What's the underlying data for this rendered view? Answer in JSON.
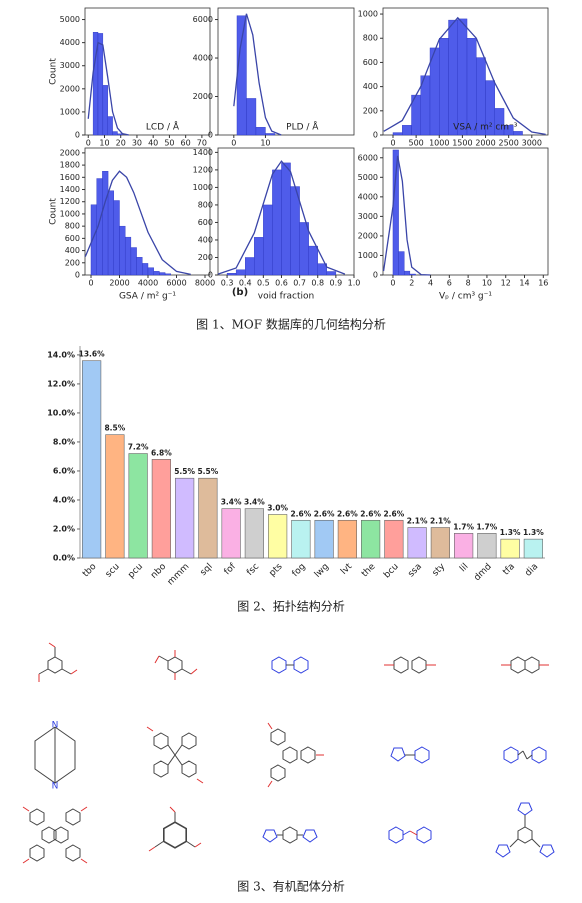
{
  "chart_data": [
    {
      "type": "histogram",
      "xlabel": "LCD / Å",
      "ylabel": "Count",
      "color": "#4f5cea",
      "bins": [
        3,
        6,
        9,
        12,
        15,
        18,
        21
      ],
      "values": [
        4450,
        4400,
        2150,
        800,
        150,
        50
      ],
      "fit": {
        "x": [
          0,
          3,
          6,
          9,
          12,
          15,
          18,
          21,
          25
        ],
        "values": [
          700,
          2700,
          4000,
          3900,
          2500,
          1000,
          300,
          60,
          0
        ],
        "color": "#3a45a8"
      },
      "xlim": [
        -2,
        75
      ],
      "xticks": [
        0,
        10,
        20,
        30,
        40,
        50,
        60,
        70
      ],
      "ylim": [
        0,
        5500
      ],
      "yticks": [
        0,
        1000,
        2000,
        3000,
        4000,
        5000
      ]
    },
    {
      "type": "histogram",
      "xlabel": "PLD / Å",
      "color": "#4f5cea",
      "bins": [
        1,
        4,
        7,
        10,
        13
      ],
      "values": [
        6200,
        1900,
        400,
        80
      ],
      "fit": {
        "x": [
          0,
          2,
          4,
          6,
          8,
          10,
          12,
          15
        ],
        "values": [
          1500,
          4500,
          6300,
          5200,
          2700,
          900,
          200,
          0
        ],
        "color": "#3a45a8"
      },
      "xlim": [
        -5,
        38
      ],
      "xticks": [
        0,
        10
      ],
      "ylim": [
        0,
        6600
      ],
      "yticks": [
        0,
        2000,
        4000,
        6000
      ]
    },
    {
      "type": "histogram",
      "xlabel": "VSA / m² cm⁻³",
      "color": "#4f5cea",
      "bins": [
        0,
        200,
        400,
        600,
        800,
        1000,
        1200,
        1400,
        1600,
        1800,
        2000,
        2200,
        2400,
        2600,
        2800
      ],
      "values": [
        20,
        80,
        330,
        490,
        720,
        800,
        950,
        960,
        800,
        640,
        450,
        220,
        80,
        30
      ],
      "fit": {
        "x": [
          -200,
          200,
          600,
          1000,
          1400,
          1800,
          2200,
          2600,
          3000,
          3300
        ],
        "values": [
          30,
          120,
          400,
          790,
          970,
          800,
          430,
          140,
          25,
          5
        ],
        "color": "#3a45a8"
      },
      "xlim": [
        -216,
        3350
      ],
      "xticks": [
        0,
        500,
        1000,
        1500,
        2000,
        2500,
        3000
      ],
      "ylim": [
        0,
        1050
      ],
      "yticks": [
        0,
        200,
        400,
        600,
        800,
        1000
      ]
    },
    {
      "type": "histogram",
      "xlabel": "GSA / m² g⁻¹",
      "ylabel": "Count",
      "color": "#4f5cea",
      "bins": [
        0,
        400,
        800,
        1200,
        1600,
        2000,
        2400,
        2800,
        3200,
        3600,
        4000,
        4400,
        4800,
        5200,
        5600
      ],
      "values": [
        1150,
        1580,
        1700,
        1380,
        1220,
        800,
        620,
        450,
        290,
        190,
        120,
        60,
        40,
        20
      ],
      "fit": {
        "x": [
          -400,
          500,
          1000,
          1500,
          2000,
          2500,
          3000,
          4000,
          5000,
          6000,
          7000
        ],
        "values": [
          300,
          800,
          1200,
          1550,
          1700,
          1600,
          1350,
          700,
          250,
          60,
          10
        ],
        "color": "#3a45a8"
      },
      "xlim": [
        -420,
        8350
      ],
      "xticks": [
        0,
        2000,
        4000,
        6000,
        8000
      ],
      "ylim": [
        0,
        2080
      ],
      "yticks": [
        0,
        200,
        400,
        600,
        800,
        1000,
        1200,
        1400,
        1600,
        1800,
        2000
      ]
    },
    {
      "type": "histogram",
      "xlabel": "void fraction",
      "color": "#4f5cea",
      "bins": [
        0.3,
        0.35,
        0.4,
        0.45,
        0.5,
        0.55,
        0.6,
        0.65,
        0.7,
        0.75,
        0.8,
        0.85,
        0.9
      ],
      "values": [
        20,
        60,
        200,
        430,
        800,
        1200,
        1280,
        1010,
        600,
        330,
        130,
        40
      ],
      "fit": {
        "x": [
          0.25,
          0.35,
          0.45,
          0.55,
          0.6,
          0.65,
          0.75,
          0.85,
          0.95
        ],
        "values": [
          10,
          80,
          480,
          1150,
          1300,
          1180,
          500,
          90,
          10
        ],
        "color": "#3a45a8"
      },
      "xlim": [
        0.25,
        1.0
      ],
      "xticks": [
        0.3,
        0.4,
        0.5,
        0.6,
        0.7,
        0.8,
        0.9,
        {
          "value": 1,
          "label": "1.0"
        }
      ],
      "ylim": [
        0,
        1450
      ],
      "yticks": [
        0,
        200,
        400,
        600,
        800,
        1000,
        1200,
        1400
      ]
    },
    {
      "type": "histogram",
      "xlabel": "Vₚ / cm³ g⁻¹",
      "color": "#4f5cea",
      "bins": [
        0,
        0.6,
        1.2,
        1.8,
        2.4
      ],
      "values": [
        6400,
        1200,
        200,
        50
      ],
      "fit": {
        "x": [
          -1,
          0,
          0.5,
          1,
          1.5,
          2,
          3,
          4
        ],
        "values": [
          200,
          3500,
          6100,
          4800,
          1800,
          400,
          20,
          0
        ],
        "color": "#3a45a8"
      },
      "xlim": [
        -1.06,
        16.5
      ],
      "xticks": [
        0,
        2,
        4,
        6,
        8,
        10,
        12,
        14,
        16
      ],
      "ylim": [
        0,
        6500
      ],
      "yticks": [
        0,
        1000,
        2000,
        3000,
        4000,
        5000,
        6000
      ]
    },
    {
      "type": "bar",
      "categories": [
        "tbo",
        "scu",
        "pcu",
        "nbo",
        "mmm",
        "sql",
        "fof",
        "fsc",
        "pts",
        "fog",
        "lwg",
        "lvt",
        "the",
        "bcu",
        "ssa",
        "sty",
        "lil",
        "dmd",
        "tfa",
        "dia"
      ],
      "values": [
        13.6,
        8.5,
        7.2,
        6.8,
        5.5,
        5.5,
        3.4,
        3.4,
        3.0,
        2.6,
        2.6,
        2.6,
        2.6,
        2.6,
        2.1,
        2.1,
        1.7,
        1.7,
        1.3,
        1.3
      ],
      "value_labels": [
        "13.6%",
        "8.5%",
        "7.2%",
        "6.8%",
        "5.5%",
        "5.5%",
        "3.4%",
        "3.4%",
        "3.0%",
        "2.6%",
        "2.6%",
        "2.6%",
        "2.6%",
        "2.6%",
        "2.1%",
        "2.1%",
        "1.7%",
        "1.7%",
        "1.3%",
        "1.3%"
      ],
      "colors": [
        "#a1c9f4",
        "#ffb482",
        "#8de5a1",
        "#ff9f9b",
        "#d0bbff",
        "#debb9b",
        "#fab0e4",
        "#cfcfcf",
        "#fffea3",
        "#b9f2f0",
        "#a1c9f4",
        "#ffb482",
        "#8de5a1",
        "#ff9f9b",
        "#d0bbff",
        "#debb9b",
        "#fab0e4",
        "#cfcfcf",
        "#fffea3",
        "#b9f2f0"
      ],
      "ylim": [
        0,
        14.2
      ],
      "yticks": [
        {
          "value": 0,
          "label": "0.0%"
        },
        {
          "value": 2,
          "label": "2.0%"
        },
        {
          "value": 4,
          "label": "4.0%"
        },
        {
          "value": 6,
          "label": "6.0%"
        },
        {
          "value": 8,
          "label": "8.0%"
        },
        {
          "value": 10,
          "label": "10.0%"
        },
        {
          "value": 12,
          "label": "12.0%"
        },
        {
          "value": 14,
          "label": "14.0%"
        }
      ]
    }
  ],
  "panel_label": "(b)",
  "captions": [
    "图 1、MOF 数据库的几何结构分析",
    "图 2、拓扑结构分析",
    "图 3、有机配体分析"
  ]
}
